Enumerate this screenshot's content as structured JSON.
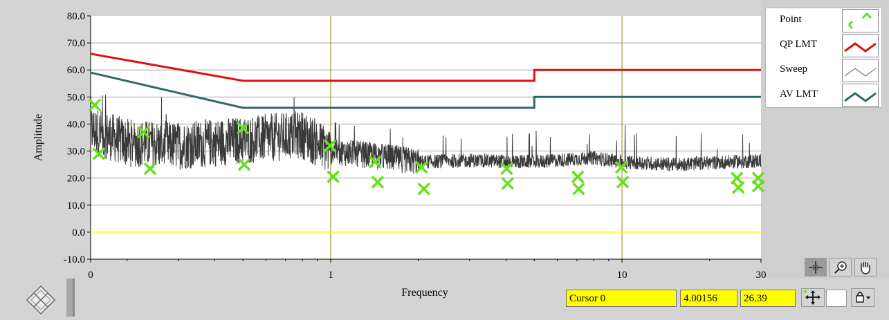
{
  "chart_data": {
    "type": "line",
    "xlabel": "Frequency",
    "ylabel": "Amplitude",
    "x_scale": "log",
    "xlim": [
      0.15,
      30
    ],
    "ylim": [
      -10,
      80
    ],
    "x_ticks": [
      {
        "value": 0.15,
        "label": "0"
      },
      {
        "value": 1,
        "label": "1"
      },
      {
        "value": 10,
        "label": "10"
      },
      {
        "value": 30,
        "label": "30"
      }
    ],
    "y_ticks": [
      {
        "value": 80,
        "label": "80.0"
      },
      {
        "value": 70,
        "label": "70.0"
      },
      {
        "value": 60,
        "label": "60.0"
      },
      {
        "value": 50,
        "label": "50.0"
      },
      {
        "value": 40,
        "label": "40.0"
      },
      {
        "value": 30,
        "label": "30.0"
      },
      {
        "value": 20,
        "label": "20.0"
      },
      {
        "value": 10,
        "label": "10.0"
      },
      {
        "value": 0,
        "label": "0.0"
      },
      {
        "value": -10,
        "label": "-10.0"
      }
    ],
    "grid": true,
    "legend_position": "right",
    "series": [
      {
        "name": "QP LMT",
        "color": "#e01010",
        "x": [
          0.15,
          0.5,
          5,
          5,
          30
        ],
        "y": [
          66,
          56,
          56,
          60,
          60
        ]
      },
      {
        "name": "AV LMT",
        "color": "#2f6b68",
        "x": [
          0.15,
          0.5,
          5,
          5,
          30
        ],
        "y": [
          59,
          46,
          46,
          50,
          50
        ]
      },
      {
        "name": "Point",
        "color": "#66e01a",
        "marker": "x",
        "x": [
          0.155,
          0.16,
          0.228,
          0.24,
          0.5,
          0.505,
          0.995,
          1.02,
          1.42,
          1.45,
          2.05,
          2.09,
          4.02,
          4.05,
          7.05,
          7.1,
          9.95,
          10.05,
          24.8,
          25.1,
          30,
          30
        ],
        "y": [
          47,
          29,
          37,
          23.5,
          38.5,
          25,
          32,
          20.5,
          26,
          18.5,
          24,
          16,
          23.5,
          18,
          20.5,
          16,
          24,
          18.5,
          20,
          16.5,
          20,
          17
        ]
      },
      {
        "name": "Sweep",
        "color": "#3a3a3a",
        "description_points": {
          "x": [
            0.15,
            0.2,
            0.3,
            0.5,
            0.8,
            1,
            1.5,
            2,
            3,
            5,
            8,
            10,
            15,
            30
          ],
          "y": [
            38,
            33,
            32,
            34,
            36,
            30,
            28,
            26,
            26.5,
            26,
            27.5,
            26,
            25,
            26.5
          ]
        }
      },
      {
        "name": "0.0 reference",
        "color": "#ffff00",
        "x": [
          0.15,
          30
        ],
        "y": [
          0,
          0
        ]
      }
    ]
  },
  "legend": {
    "items": [
      {
        "label": "Point"
      },
      {
        "label": "QP LMT"
      },
      {
        "label": "Sweep"
      },
      {
        "label": "AV LMT"
      }
    ]
  },
  "cursor": {
    "name": "Cursor 0",
    "x_value": "4.00156",
    "y_value": "26.39"
  },
  "colors": {
    "plot_bg": "#ffffff",
    "panel_bg": "#d4d4d4",
    "grid": "#a0a0a0",
    "cursor_line": "#a09a2e",
    "cursor_field": "#ffff00"
  }
}
